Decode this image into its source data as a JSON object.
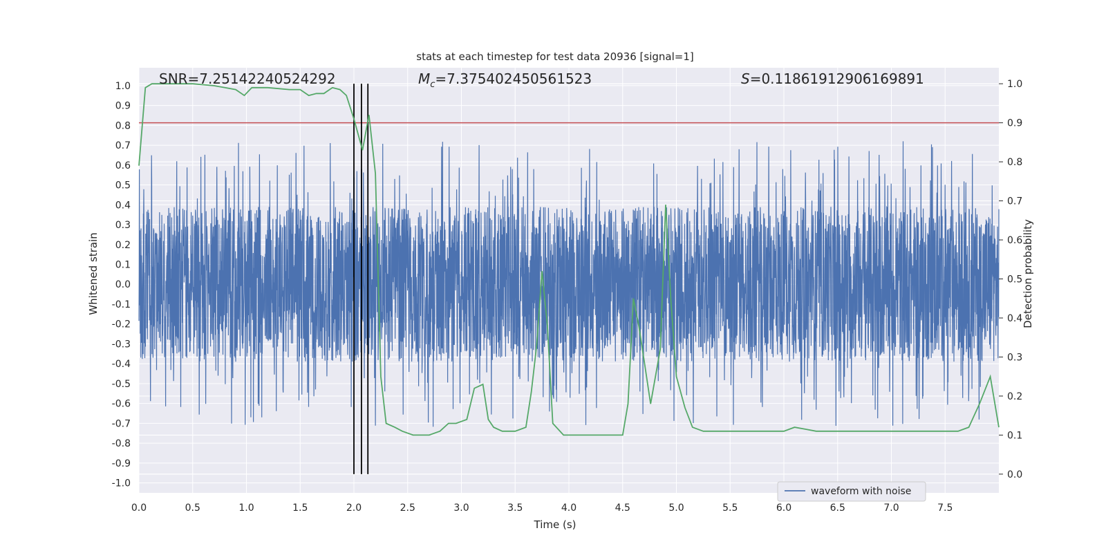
{
  "chart_data": {
    "type": "line",
    "title": "stats at each timestep for test data 20936 [signal=1]",
    "xlabel": "Time (s)",
    "ylabel": "Whitened strain",
    "y2label": "Detection probability",
    "xlim": [
      0.0,
      8.0
    ],
    "ylim": [
      -1.05,
      1.09
    ],
    "y2lim": [
      -0.048,
      1.041
    ],
    "xticks": [
      "0.0",
      "0.5",
      "1.0",
      "1.5",
      "2.0",
      "2.5",
      "3.0",
      "3.5",
      "4.0",
      "4.5",
      "5.0",
      "5.5",
      "6.0",
      "6.5",
      "7.0",
      "7.5"
    ],
    "yticks": [
      "-1.0",
      "-0.9",
      "-0.8",
      "-0.7",
      "-0.6",
      "-0.5",
      "-0.4",
      "-0.3",
      "-0.2",
      "-0.1",
      "0.0",
      "0.1",
      "0.2",
      "0.3",
      "0.4",
      "0.5",
      "0.6",
      "0.7",
      "0.8",
      "0.9",
      "1.0"
    ],
    "y2ticks": [
      "0.0",
      "0.1",
      "0.2",
      "0.3",
      "0.4",
      "0.5",
      "0.6",
      "0.7",
      "0.8",
      "0.9",
      "1.0"
    ],
    "annotations": {
      "snr": "SNR=7.25142240524292",
      "mc_symbol": "M",
      "mc_sub": "c",
      "mc_value": "=7.375402450561523",
      "s_symbol": "S",
      "s_value": "=0.11861912906169891"
    },
    "threshold": {
      "value": 0.9,
      "color": "#c44e52"
    },
    "vlines": [
      2.0,
      2.07,
      2.13
    ],
    "vline_range": [
      0.0,
      1.0
    ],
    "series": [
      {
        "name": "waveform with noise",
        "color": "#4c72b0",
        "axis": "left",
        "note": "dense noise trace, mostly within ±0.4 with spikes up to about ±0.9"
      },
      {
        "name": "detection probability",
        "color": "#55a868",
        "axis": "right",
        "x": [
          0.0,
          0.06,
          0.12,
          0.25,
          0.5,
          0.7,
          0.8,
          0.9,
          0.98,
          1.05,
          1.2,
          1.4,
          1.5,
          1.58,
          1.65,
          1.72,
          1.8,
          1.87,
          1.93,
          2.0,
          2.08,
          2.14,
          2.2,
          2.25,
          2.3,
          2.38,
          2.45,
          2.55,
          2.7,
          2.8,
          2.88,
          2.95,
          3.05,
          3.12,
          3.2,
          3.25,
          3.3,
          3.38,
          3.5,
          3.6,
          3.65,
          3.7,
          3.75,
          3.8,
          3.85,
          3.95,
          4.1,
          4.3,
          4.5,
          4.55,
          4.6,
          4.65,
          4.7,
          4.76,
          4.85,
          4.9,
          4.95,
          5.0,
          5.08,
          5.15,
          5.25,
          5.4,
          5.6,
          5.8,
          6.0,
          6.1,
          6.2,
          6.3,
          6.5,
          6.7,
          6.9,
          7.1,
          7.3,
          7.5,
          7.62,
          7.72,
          7.82,
          7.92,
          8.0
        ],
        "y": [
          0.79,
          0.99,
          1.0,
          1.0,
          1.0,
          0.995,
          0.99,
          0.985,
          0.97,
          0.99,
          0.99,
          0.985,
          0.985,
          0.97,
          0.975,
          0.975,
          0.99,
          0.985,
          0.97,
          0.91,
          0.83,
          0.92,
          0.77,
          0.25,
          0.13,
          0.12,
          0.11,
          0.1,
          0.1,
          0.11,
          0.13,
          0.13,
          0.14,
          0.22,
          0.23,
          0.14,
          0.12,
          0.11,
          0.11,
          0.12,
          0.21,
          0.33,
          0.52,
          0.38,
          0.13,
          0.1,
          0.1,
          0.1,
          0.1,
          0.18,
          0.45,
          0.38,
          0.29,
          0.18,
          0.32,
          0.69,
          0.44,
          0.25,
          0.17,
          0.12,
          0.11,
          0.11,
          0.11,
          0.11,
          0.11,
          0.12,
          0.115,
          0.11,
          0.11,
          0.11,
          0.11,
          0.11,
          0.11,
          0.11,
          0.11,
          0.12,
          0.18,
          0.25,
          0.12
        ]
      }
    ],
    "legend": {
      "placement": "bottom-right",
      "entries": [
        "waveform with noise"
      ]
    },
    "grid": true
  }
}
